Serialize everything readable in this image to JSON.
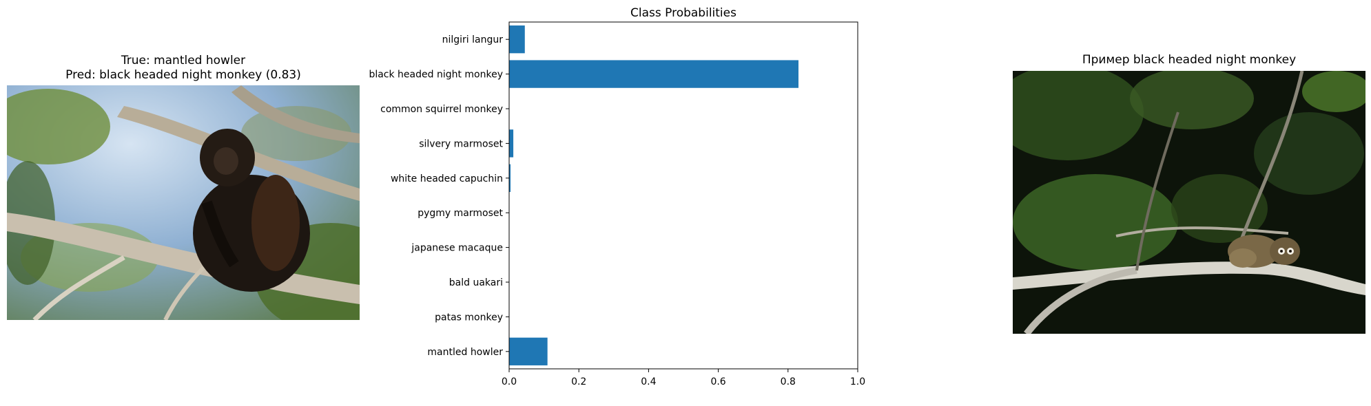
{
  "left_panel": {
    "title_line1": "True: mantled howler",
    "title_line2": "Pred: black headed night monkey (0.83)"
  },
  "right_panel": {
    "title": "Пример black headed night monkey"
  },
  "chart_data": {
    "type": "bar",
    "orientation": "horizontal",
    "title": "Class Probabilities",
    "categories": [
      "mantled howler",
      "patas monkey",
      "bald uakari",
      "japanese macaque",
      "pygmy marmoset",
      "white headed capuchin",
      "silvery marmoset",
      "common squirrel monkey",
      "black headed night monkey",
      "nilgiri langur"
    ],
    "values": [
      0.11,
      0.0,
      0.0,
      0.0,
      0.0,
      0.004,
      0.012,
      0.0,
      0.83,
      0.045
    ],
    "xlim": [
      0,
      1.0
    ],
    "xticks": [
      "0.0",
      "0.2",
      "0.4",
      "0.6",
      "0.8",
      "1.0"
    ],
    "xlabel": "",
    "ylabel": "",
    "grid": false,
    "bar_color": "#1f77b4"
  }
}
